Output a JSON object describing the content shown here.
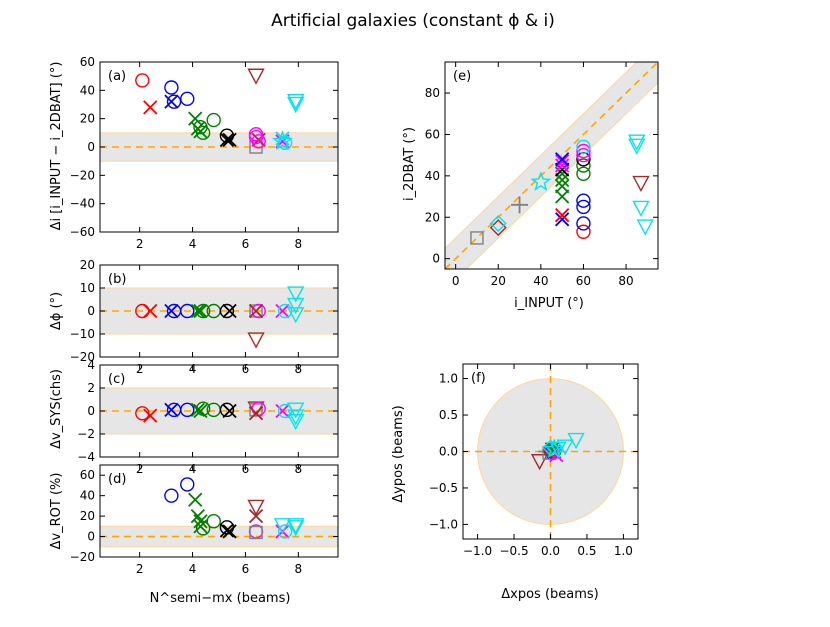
{
  "figure": {
    "title": "Artificial galaxies (constant ϕ & i)"
  },
  "colors": {
    "red": "#ff0000",
    "blue": "#0000ff",
    "green": "#008000",
    "black": "#000000",
    "magenta": "#ff00ff",
    "cyan": "#00e5ee",
    "brown": "#a52a2a",
    "gray": "#808080",
    "orange": "#ffa500",
    "band": "#e6e6e6",
    "band_edge": "#ffd59a"
  },
  "chart_data": [
    {
      "id": "a",
      "type": "scatter",
      "panel_label": "(a)",
      "ylabel": "Δi [i_INPUT − i_2DBAT] (°)",
      "xlim": [
        0.5,
        9.5
      ],
      "ylim": [
        -60,
        60
      ],
      "xticks": [
        "2",
        "4",
        "6",
        "8"
      ],
      "yticks": [
        "−60",
        "−40",
        "−20",
        "0",
        "20",
        "40",
        "60"
      ],
      "band": [
        -10,
        10
      ],
      "hline": 0,
      "points": [
        {
          "x": 2.1,
          "y": 47,
          "m": "o",
          "c": "red"
        },
        {
          "x": 2.4,
          "y": 28,
          "m": "x",
          "c": "red"
        },
        {
          "x": 3.2,
          "y": 42,
          "m": "o",
          "c": "blue"
        },
        {
          "x": 3.2,
          "y": 32,
          "m": "x",
          "c": "blue"
        },
        {
          "x": 3.3,
          "y": 32,
          "m": "o",
          "c": "blue"
        },
        {
          "x": 3.8,
          "y": 34,
          "m": "o",
          "c": "blue"
        },
        {
          "x": 4.1,
          "y": 20,
          "m": "x",
          "c": "green"
        },
        {
          "x": 4.3,
          "y": 14,
          "m": "o",
          "c": "green"
        },
        {
          "x": 4.3,
          "y": 11,
          "m": "x",
          "c": "green"
        },
        {
          "x": 4.2,
          "y": 13,
          "m": "x",
          "c": "green"
        },
        {
          "x": 4.4,
          "y": 10,
          "m": "o",
          "c": "green"
        },
        {
          "x": 4.8,
          "y": 19,
          "m": "o",
          "c": "green"
        },
        {
          "x": 5.3,
          "y": 8,
          "m": "o",
          "c": "black"
        },
        {
          "x": 5.3,
          "y": 5,
          "m": "x",
          "c": "black"
        },
        {
          "x": 5.4,
          "y": 5,
          "m": "x",
          "c": "black"
        },
        {
          "x": 6.4,
          "y": 51,
          "m": "tri",
          "c": "brown"
        },
        {
          "x": 6.4,
          "y": 0,
          "m": "sq",
          "c": "gray"
        },
        {
          "x": 6.5,
          "y": 5,
          "m": "x",
          "c": "brown"
        },
        {
          "x": 6.4,
          "y": 7,
          "m": "o",
          "c": "magenta"
        },
        {
          "x": 6.4,
          "y": 9,
          "m": "o",
          "c": "magenta"
        },
        {
          "x": 6.5,
          "y": 4,
          "m": "o",
          "c": "magenta"
        },
        {
          "x": 7.4,
          "y": 4,
          "m": "x",
          "c": "magenta"
        },
        {
          "x": 7.4,
          "y": 6,
          "m": "x",
          "c": "cyan"
        },
        {
          "x": 7.5,
          "y": 3,
          "m": "o",
          "c": "cyan"
        },
        {
          "x": 7.4,
          "y": 4,
          "m": "star",
          "c": "cyan"
        },
        {
          "x": 7.9,
          "y": 31,
          "m": "tri",
          "c": "cyan"
        },
        {
          "x": 7.9,
          "y": 33,
          "m": "tri",
          "c": "cyan"
        }
      ]
    },
    {
      "id": "b",
      "type": "scatter",
      "panel_label": "(b)",
      "ylabel": "Δϕ (°)",
      "xlim": [
        0.5,
        9.5
      ],
      "ylim": [
        -20,
        20
      ],
      "xticks": [
        "2",
        "4",
        "6",
        "8"
      ],
      "yticks": [
        "−20",
        "−10",
        "0",
        "10",
        "20"
      ],
      "band": [
        -10,
        10
      ],
      "hline": 0,
      "points": [
        {
          "x": 2.1,
          "y": 0,
          "m": "o",
          "c": "red"
        },
        {
          "x": 2.4,
          "y": 0,
          "m": "x",
          "c": "red"
        },
        {
          "x": 3.2,
          "y": 0,
          "m": "x",
          "c": "blue"
        },
        {
          "x": 3.3,
          "y": 0,
          "m": "o",
          "c": "blue"
        },
        {
          "x": 3.8,
          "y": 0,
          "m": "o",
          "c": "blue"
        },
        {
          "x": 4.2,
          "y": 0,
          "m": "x",
          "c": "green"
        },
        {
          "x": 4.3,
          "y": 0,
          "m": "x",
          "c": "green"
        },
        {
          "x": 4.4,
          "y": 0,
          "m": "o",
          "c": "green"
        },
        {
          "x": 4.8,
          "y": 0,
          "m": "o",
          "c": "green"
        },
        {
          "x": 5.3,
          "y": 0,
          "m": "o",
          "c": "black"
        },
        {
          "x": 5.4,
          "y": 0,
          "m": "x",
          "c": "black"
        },
        {
          "x": 6.4,
          "y": -12,
          "m": "tri",
          "c": "brown"
        },
        {
          "x": 6.4,
          "y": 0,
          "m": "sq",
          "c": "gray"
        },
        {
          "x": 6.5,
          "y": 0,
          "m": "o",
          "c": "magenta"
        },
        {
          "x": 6.4,
          "y": 0,
          "m": "x",
          "c": "brown"
        },
        {
          "x": 7.4,
          "y": 0,
          "m": "x",
          "c": "magenta"
        },
        {
          "x": 7.5,
          "y": 0,
          "m": "o",
          "c": "cyan"
        },
        {
          "x": 7.9,
          "y": 8,
          "m": "tri",
          "c": "cyan"
        },
        {
          "x": 7.9,
          "y": 3,
          "m": "tri",
          "c": "cyan"
        },
        {
          "x": 7.9,
          "y": -1,
          "m": "tri",
          "c": "cyan"
        }
      ]
    },
    {
      "id": "c",
      "type": "scatter",
      "panel_label": "(c)",
      "ylabel": "Δv_SYS(chs)",
      "xlim": [
        0.5,
        9.5
      ],
      "ylim": [
        -4,
        4
      ],
      "xticks": [
        "2",
        "4",
        "6",
        "8"
      ],
      "yticks": [
        "−4",
        "−2",
        "0",
        "2",
        "4"
      ],
      "band": [
        -2,
        2
      ],
      "hline": 0,
      "points": [
        {
          "x": 2.1,
          "y": -0.2,
          "m": "o",
          "c": "red"
        },
        {
          "x": 2.4,
          "y": -0.4,
          "m": "x",
          "c": "red"
        },
        {
          "x": 3.2,
          "y": 0.1,
          "m": "x",
          "c": "blue"
        },
        {
          "x": 3.3,
          "y": 0.1,
          "m": "o",
          "c": "blue"
        },
        {
          "x": 3.8,
          "y": 0.1,
          "m": "o",
          "c": "blue"
        },
        {
          "x": 4.2,
          "y": 0.1,
          "m": "x",
          "c": "green"
        },
        {
          "x": 4.3,
          "y": 0,
          "m": "x",
          "c": "green"
        },
        {
          "x": 4.4,
          "y": 0.2,
          "m": "o",
          "c": "green"
        },
        {
          "x": 4.8,
          "y": 0.1,
          "m": "o",
          "c": "green"
        },
        {
          "x": 5.3,
          "y": 0.1,
          "m": "o",
          "c": "black"
        },
        {
          "x": 5.4,
          "y": 0,
          "m": "x",
          "c": "black"
        },
        {
          "x": 6.4,
          "y": 0.3,
          "m": "tri",
          "c": "brown"
        },
        {
          "x": 6.4,
          "y": 0.1,
          "m": "sq",
          "c": "gray"
        },
        {
          "x": 6.5,
          "y": 0.2,
          "m": "o",
          "c": "magenta"
        },
        {
          "x": 6.4,
          "y": -0.2,
          "m": "x",
          "c": "brown"
        },
        {
          "x": 7.4,
          "y": 0,
          "m": "x",
          "c": "magenta"
        },
        {
          "x": 7.5,
          "y": 0,
          "m": "o",
          "c": "cyan"
        },
        {
          "x": 7.9,
          "y": 0.2,
          "m": "tri",
          "c": "cyan"
        },
        {
          "x": 7.9,
          "y": -0.4,
          "m": "tri",
          "c": "cyan"
        },
        {
          "x": 7.9,
          "y": -0.8,
          "m": "tri",
          "c": "cyan"
        }
      ]
    },
    {
      "id": "d",
      "type": "scatter",
      "panel_label": "(d)",
      "ylabel": "Δv_ROT (%)",
      "xlabel": "N^semi−mx (beams)",
      "xlim": [
        0.5,
        9.5
      ],
      "ylim": [
        -20,
        70
      ],
      "xticks": [
        "2",
        "4",
        "6",
        "8"
      ],
      "yticks": [
        "−20",
        "0",
        "20",
        "40",
        "60"
      ],
      "band": [
        -10,
        10
      ],
      "hline": 0,
      "points": [
        {
          "x": 3.2,
          "y": 40,
          "m": "o",
          "c": "blue"
        },
        {
          "x": 3.8,
          "y": 51,
          "m": "o",
          "c": "blue"
        },
        {
          "x": 4.1,
          "y": 36,
          "m": "x",
          "c": "green"
        },
        {
          "x": 4.2,
          "y": 20,
          "m": "x",
          "c": "green"
        },
        {
          "x": 4.3,
          "y": 15,
          "m": "x",
          "c": "green"
        },
        {
          "x": 4.3,
          "y": 10,
          "m": "x",
          "c": "green"
        },
        {
          "x": 4.4,
          "y": 8,
          "m": "o",
          "c": "green"
        },
        {
          "x": 4.8,
          "y": 15,
          "m": "o",
          "c": "green"
        },
        {
          "x": 5.3,
          "y": 9,
          "m": "o",
          "c": "black"
        },
        {
          "x": 5.3,
          "y": 6,
          "m": "x",
          "c": "black"
        },
        {
          "x": 5.4,
          "y": 5,
          "m": "x",
          "c": "black"
        },
        {
          "x": 6.4,
          "y": 30,
          "m": "tri",
          "c": "brown"
        },
        {
          "x": 6.4,
          "y": 20,
          "m": "x",
          "c": "brown"
        },
        {
          "x": 6.4,
          "y": 5,
          "m": "o",
          "c": "magenta"
        },
        {
          "x": 6.4,
          "y": 4,
          "m": "sq",
          "c": "gray"
        },
        {
          "x": 7.4,
          "y": 5,
          "m": "x",
          "c": "magenta"
        },
        {
          "x": 7.4,
          "y": 12,
          "m": "tri",
          "c": "cyan"
        },
        {
          "x": 7.5,
          "y": 5,
          "m": "o",
          "c": "cyan"
        },
        {
          "x": 7.9,
          "y": 12,
          "m": "tri",
          "c": "cyan"
        },
        {
          "x": 7.9,
          "y": 10,
          "m": "tri",
          "c": "cyan"
        }
      ]
    },
    {
      "id": "e",
      "type": "scatter",
      "panel_label": "(e)",
      "ylabel": "i_2DBAT (°)",
      "xlabel": "i_INPUT (°)",
      "xlim": [
        -5,
        95
      ],
      "ylim": [
        -5,
        95
      ],
      "xticks": [
        "0",
        "20",
        "40",
        "60",
        "80"
      ],
      "yticks": [
        "0",
        "20",
        "40",
        "60",
        "80"
      ],
      "diag_band": 10,
      "diag_line": true,
      "points": [
        {
          "x": 10,
          "y": 10,
          "m": "sq",
          "c": "gray"
        },
        {
          "x": 20,
          "y": 15,
          "m": "dia",
          "c": "brown"
        },
        {
          "x": 20,
          "y": 17,
          "m": "dia",
          "c": "cyan"
        },
        {
          "x": 30,
          "y": 26,
          "m": "plus",
          "c": "gray"
        },
        {
          "x": 40,
          "y": 37,
          "m": "star",
          "c": "cyan"
        },
        {
          "x": 50,
          "y": 19,
          "m": "x",
          "c": "blue"
        },
        {
          "x": 50,
          "y": 21,
          "m": "x",
          "c": "red"
        },
        {
          "x": 50,
          "y": 30,
          "m": "x",
          "c": "green"
        },
        {
          "x": 50,
          "y": 35,
          "m": "x",
          "c": "green"
        },
        {
          "x": 50,
          "y": 38,
          "m": "x",
          "c": "green"
        },
        {
          "x": 50,
          "y": 41,
          "m": "x",
          "c": "green"
        },
        {
          "x": 50,
          "y": 43,
          "m": "x",
          "c": "black"
        },
        {
          "x": 50,
          "y": 45,
          "m": "x",
          "c": "magenta"
        },
        {
          "x": 50,
          "y": 47,
          "m": "x",
          "c": "magenta"
        },
        {
          "x": 50,
          "y": 48,
          "m": "x",
          "c": "blue"
        },
        {
          "x": 60,
          "y": 13,
          "m": "o",
          "c": "red"
        },
        {
          "x": 60,
          "y": 17,
          "m": "o",
          "c": "blue"
        },
        {
          "x": 60,
          "y": 25,
          "m": "o",
          "c": "blue"
        },
        {
          "x": 60,
          "y": 28,
          "m": "o",
          "c": "blue"
        },
        {
          "x": 60,
          "y": 41,
          "m": "o",
          "c": "green"
        },
        {
          "x": 60,
          "y": 45,
          "m": "o",
          "c": "green"
        },
        {
          "x": 60,
          "y": 48,
          "m": "o",
          "c": "black"
        },
        {
          "x": 60,
          "y": 50,
          "m": "o",
          "c": "magenta"
        },
        {
          "x": 60,
          "y": 52,
          "m": "o",
          "c": "magenta"
        },
        {
          "x": 60,
          "y": 54,
          "m": "o",
          "c": "cyan"
        },
        {
          "x": 85,
          "y": 55,
          "m": "tri",
          "c": "cyan"
        },
        {
          "x": 85,
          "y": 57,
          "m": "tri",
          "c": "cyan"
        },
        {
          "x": 87,
          "y": 37,
          "m": "tri",
          "c": "brown"
        },
        {
          "x": 87,
          "y": 25,
          "m": "tri",
          "c": "cyan"
        },
        {
          "x": 89,
          "y": 16,
          "m": "tri",
          "c": "cyan"
        }
      ]
    },
    {
      "id": "f",
      "type": "scatter",
      "panel_label": "(f)",
      "ylabel": "Δypos (beams)",
      "xlabel": "Δxpos (beams)",
      "xlim": [
        -1.2,
        1.2
      ],
      "ylim": [
        -1.2,
        1.2
      ],
      "xticks": [
        "−1.0",
        "−0.5",
        "0.0",
        "0.5",
        "1.0"
      ],
      "yticks": [
        "−1.0",
        "−0.5",
        "0.0",
        "0.5",
        "1.0"
      ],
      "circle_radius": 1.0,
      "cross_lines": true,
      "points": [
        {
          "x": -0.15,
          "y": -0.12,
          "m": "tri",
          "c": "brown"
        },
        {
          "x": -0.05,
          "y": 0.0,
          "m": "plus",
          "c": "gray"
        },
        {
          "x": -0.02,
          "y": -0.02,
          "m": "sq",
          "c": "gray"
        },
        {
          "x": 0.0,
          "y": 0.02,
          "m": "o",
          "c": "red"
        },
        {
          "x": 0.02,
          "y": 0.0,
          "m": "o",
          "c": "blue"
        },
        {
          "x": 0.05,
          "y": 0.0,
          "m": "o",
          "c": "green"
        },
        {
          "x": 0.03,
          "y": -0.02,
          "m": "o",
          "c": "magenta"
        },
        {
          "x": 0.05,
          "y": 0.0,
          "m": "x",
          "c": "blue"
        },
        {
          "x": 0.08,
          "y": -0.05,
          "m": "x",
          "c": "magenta"
        },
        {
          "x": 0.02,
          "y": 0.03,
          "m": "x",
          "c": "green"
        },
        {
          "x": 0.0,
          "y": 0.05,
          "m": "dia",
          "c": "cyan"
        },
        {
          "x": 0.05,
          "y": 0.03,
          "m": "star",
          "c": "cyan"
        },
        {
          "x": 0.2,
          "y": 0.08,
          "m": "tri",
          "c": "cyan"
        },
        {
          "x": 0.35,
          "y": 0.17,
          "m": "tri",
          "c": "cyan"
        },
        {
          "x": 0.1,
          "y": 0.05,
          "m": "tri",
          "c": "cyan"
        }
      ]
    }
  ]
}
